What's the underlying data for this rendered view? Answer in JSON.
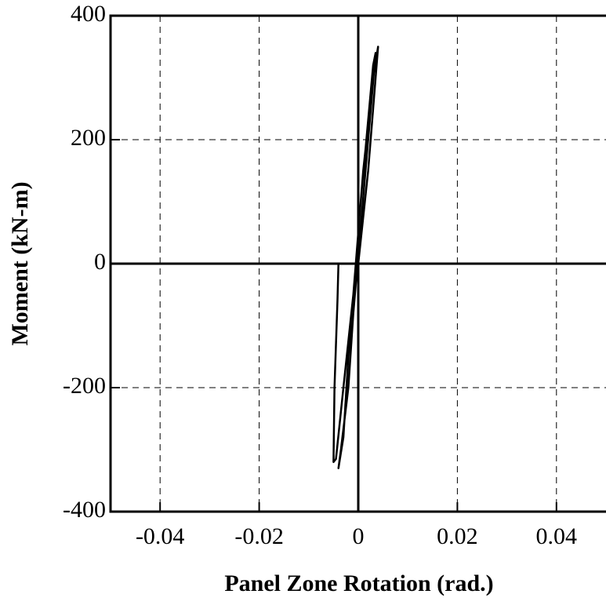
{
  "chart_data": {
    "type": "line",
    "x_label": "Panel Zone Rotation (rad.)",
    "y_label": "Moment (kN-m)",
    "x": [
      0,
      0.002,
      0.0035,
      0.004,
      0.003,
      0.001,
      -0.0005,
      -0.002,
      -0.003,
      -0.004,
      -0.0035,
      -0.002,
      -0.001,
      0.0005,
      0.002,
      0.0035,
      0.003,
      0.0005,
      -0.001,
      -0.003,
      -0.0045,
      -0.005,
      -0.0048,
      -0.0042,
      -0.004
    ],
    "series": [
      {
        "color": "#000000",
        "values": [
          0,
          150,
          300,
          350,
          300,
          150,
          0,
          -150,
          -280,
          -330,
          -300,
          -200,
          -80,
          60,
          200,
          340,
          320,
          100,
          -50,
          -200,
          -315,
          -320,
          -200,
          -60,
          0
        ]
      }
    ],
    "xlim": [
      -0.05,
      0.05
    ],
    "xticks": [
      -0.04,
      -0.02,
      0,
      0.02,
      0.04
    ],
    "ylim": [
      -400,
      400
    ],
    "yticks": [
      -400,
      -200,
      0,
      200,
      400
    ],
    "grid": true
  }
}
